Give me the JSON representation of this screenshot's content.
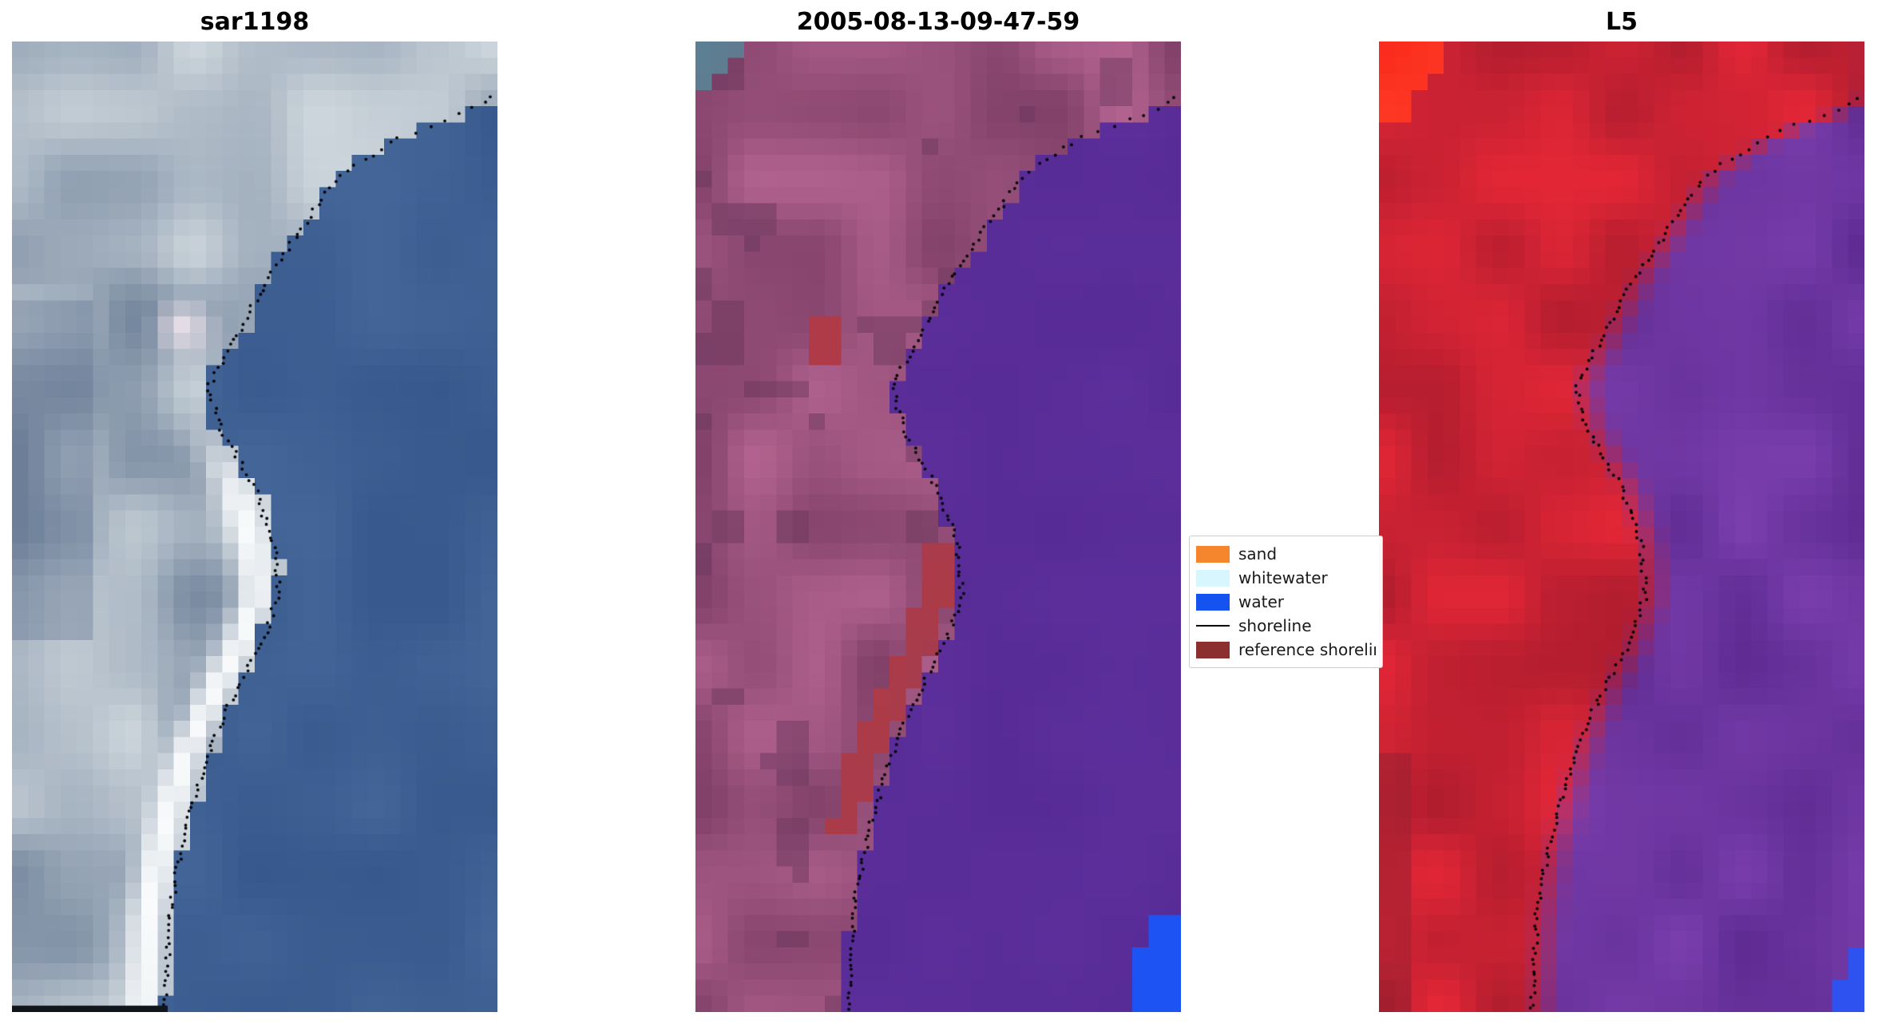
{
  "figure": {
    "background": "#ffffff"
  },
  "panels": [
    {
      "title": "sar1198",
      "type": "sar",
      "seed": 11,
      "colors": {
        "land_dark": "#71839b",
        "land_light": "#cdd6dc",
        "water_dark": "#36588c",
        "water_light": "#47699b",
        "highlight": "#f8fafb",
        "blob": "#f9ecf1",
        "shadow": "#5a6d8c",
        "bottom_strip": "#11151c"
      }
    },
    {
      "title": "2005-08-13-09-47-59",
      "type": "classified",
      "seed": 22,
      "colors": {
        "land_dark": "#7e3f66",
        "land_light": "#b2638f",
        "land_shadow": "#67355a",
        "water_dark": "#572b95",
        "water_light": "#6133a3",
        "ref": "#ae3b47",
        "water_class": "#1d53f2",
        "teal": "#5d8093"
      }
    },
    {
      "title": "L5",
      "type": "l5",
      "seed": 33,
      "colors": {
        "land_dark": "#b01d2e",
        "land_light": "#e62737",
        "water_dark": "#5e2b92",
        "water_light": "#7b3fae",
        "hot": "#fb2a1c",
        "hot2": "#ff5030",
        "maroon": "#8d1f30",
        "water_class": "#2e52f0"
      }
    }
  ],
  "legend": {
    "items": [
      {
        "label": "sand",
        "color": "#f5862d",
        "shape": "patch"
      },
      {
        "label": "whitewater",
        "color": "#d8f6fd",
        "shape": "patch"
      },
      {
        "label": "water",
        "color": "#1453f0",
        "shape": "patch"
      },
      {
        "label": "shoreline",
        "color": "#000000",
        "shape": "line"
      },
      {
        "label": "reference shoreline",
        "color": "#8c2f2f",
        "shape": "patch"
      }
    ]
  },
  "shoreline": {
    "style": "dotted",
    "color": "#000000",
    "points": [
      [
        0.055,
        1.0
      ],
      [
        0.07,
        0.95
      ],
      [
        0.1,
        0.79
      ],
      [
        0.14,
        0.67
      ],
      [
        0.19,
        0.6
      ],
      [
        0.25,
        0.52
      ],
      [
        0.31,
        0.455
      ],
      [
        0.355,
        0.405
      ],
      [
        0.4,
        0.43
      ],
      [
        0.46,
        0.5
      ],
      [
        0.52,
        0.54
      ],
      [
        0.57,
        0.55
      ],
      [
        0.62,
        0.515
      ],
      [
        0.67,
        0.46
      ],
      [
        0.72,
        0.415
      ],
      [
        0.78,
        0.375
      ],
      [
        0.84,
        0.345
      ],
      [
        0.9,
        0.325
      ],
      [
        1.0,
        0.315
      ]
    ]
  },
  "chart_data": [
    {
      "type": "heatmap",
      "title": "sar1198",
      "description": "Pixelated SAR coastal image: gray-blue land on left with bright white beach band along the coast, steel-blue water on right, black dotted detected shoreline overlay",
      "grid": false,
      "legend": false
    },
    {
      "type": "heatmap",
      "title": "2005-08-13-09-47-59",
      "description": "Classified optical scene: mauve/magenta land, solid violet water body, brick-red reference-shoreline pixels hugging the coast, teal patch in top-left corner, bright blue water-class patch in bottom-right corner, black dotted detected shoreline",
      "legend_entries": [
        "sand",
        "whitewater",
        "water",
        "shoreline",
        "reference shoreline"
      ],
      "legend_position": "center-right of figure"
    },
    {
      "type": "heatmap",
      "title": "L5",
      "description": "Landsat-5 false-colour scene: crimson-red land, violet water, bright red-orange patch top-left corner, blue patch bottom-right corner, black dotted detected shoreline",
      "grid": false,
      "legend": false
    }
  ]
}
